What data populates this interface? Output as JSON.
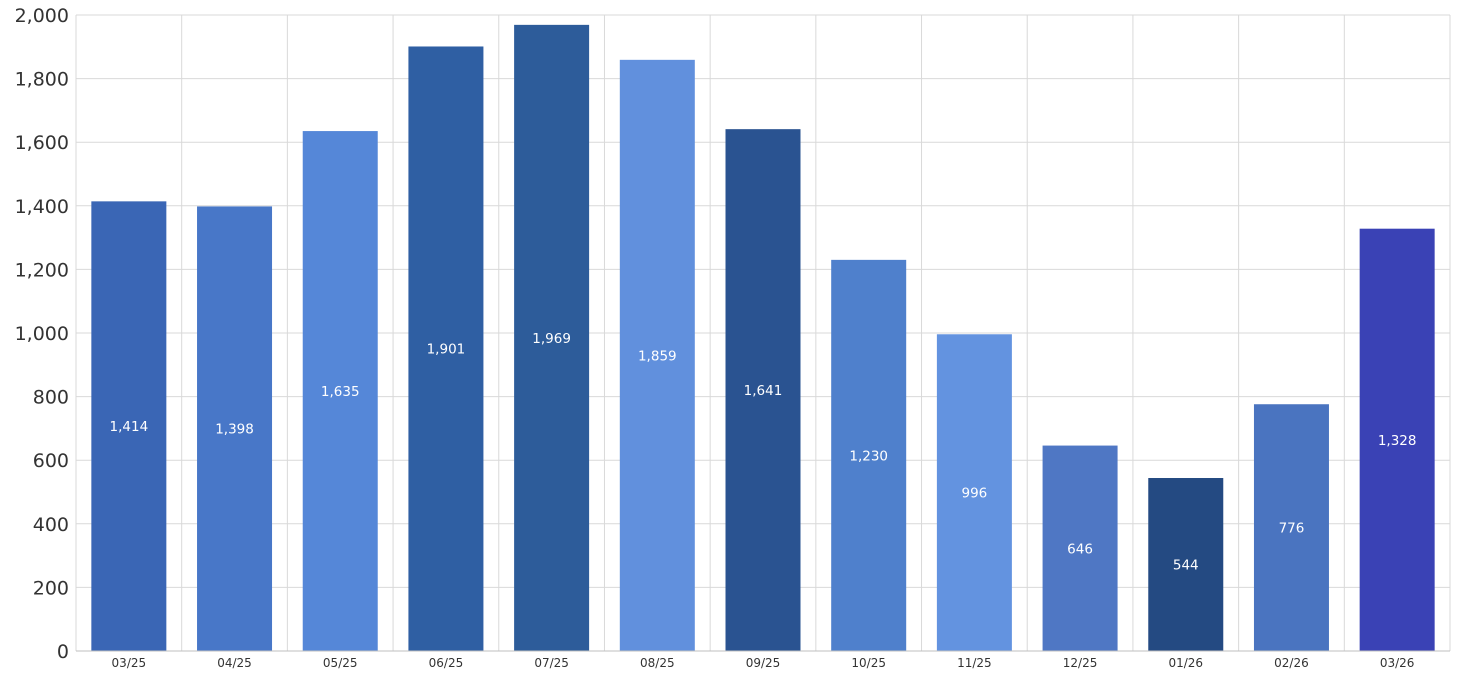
{
  "chart_data": {
    "type": "bar",
    "title": "",
    "xlabel": "",
    "ylabel": "",
    "categories": [
      "03/25",
      "04/25",
      "05/25",
      "06/25",
      "07/25",
      "08/25",
      "09/25",
      "10/25",
      "11/25",
      "12/25",
      "01/26",
      "02/26",
      "03/26"
    ],
    "values": [
      1414,
      1398,
      1635,
      1901,
      1969,
      1859,
      1641,
      1230,
      996,
      646,
      544,
      776,
      1328
    ],
    "value_labels": [
      "1,414",
      "1,398",
      "1,635",
      "1,901",
      "1,969",
      "1,859",
      "1,641",
      "1,230",
      "996",
      "646",
      "544",
      "",
      "1,328"
    ],
    "bar_label_text": [
      "1,414",
      "1,398",
      "1,635",
      "1,901",
      "1,969",
      "1,859",
      "1,641",
      "1,230",
      "996",
      "646",
      "544",
      "776",
      "1,328"
    ],
    "colors": [
      "#3a66b5",
      "#4877c8",
      "#5587d8",
      "#2f5fa3",
      "#2d5c9a",
      "#6190dd",
      "#2a5391",
      "#4f80cc",
      "#6393e0",
      "#4f77c4",
      "#244a82",
      "#4a74c0",
      "#3a42b5"
    ],
    "ylim": [
      0,
      2000
    ],
    "y_ticks": [
      0,
      200,
      400,
      600,
      800,
      1000,
      1200,
      1400,
      1600,
      1800,
      2000
    ],
    "y_tick_labels": [
      "0",
      "200",
      "400",
      "600",
      "800",
      "1,000",
      "1,200",
      "1,400",
      "1,600",
      "1,800",
      "2,000"
    ],
    "grid": true,
    "legend": "none"
  }
}
